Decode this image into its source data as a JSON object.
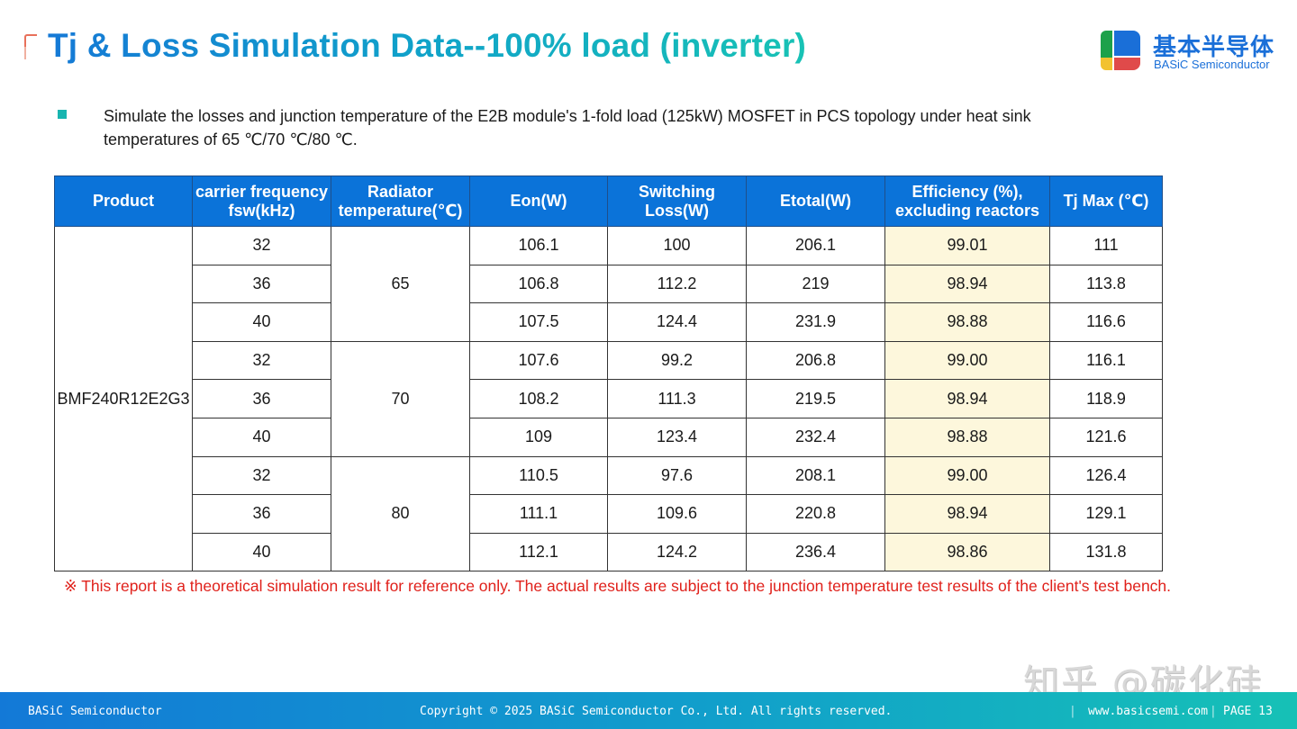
{
  "header": {
    "title": "Tj & Loss Simulation Data--100% load (inverter)",
    "logo": {
      "cn": "基本半导体",
      "en": "BASiC Semiconductor"
    }
  },
  "intro": {
    "text": "Simulate the losses and junction temperature of the E2B module's 1-fold load (125kW) MOSFET in PCS topology under heat sink temperatures of 65 ℃/70 ℃/80 ℃."
  },
  "table": {
    "headers": [
      "Product",
      "carrier frequency fsw(kHz)",
      "Radiator temperature(℃)",
      "Eon(W)",
      "Switching Loss(W)",
      "Etotal(W)",
      "Efficiency (%), excluding reactors",
      "Tj Max (℃)"
    ],
    "product": "BMF240R12E2G3",
    "groups": [
      {
        "radiator_temp": "65",
        "rows": [
          {
            "fsw": "32",
            "eon": "106.1",
            "sw_loss": "100",
            "etotal": "206.1",
            "efficiency": "99.01",
            "tj_max": "111"
          },
          {
            "fsw": "36",
            "eon": "106.8",
            "sw_loss": "112.2",
            "etotal": "219",
            "efficiency": "98.94",
            "tj_max": "113.8"
          },
          {
            "fsw": "40",
            "eon": "107.5",
            "sw_loss": "124.4",
            "etotal": "231.9",
            "efficiency": "98.88",
            "tj_max": "116.6"
          }
        ]
      },
      {
        "radiator_temp": "70",
        "rows": [
          {
            "fsw": "32",
            "eon": "107.6",
            "sw_loss": "99.2",
            "etotal": "206.8",
            "efficiency": "99.00",
            "tj_max": "116.1"
          },
          {
            "fsw": "36",
            "eon": "108.2",
            "sw_loss": "111.3",
            "etotal": "219.5",
            "efficiency": "98.94",
            "tj_max": "118.9"
          },
          {
            "fsw": "40",
            "eon": "109",
            "sw_loss": "123.4",
            "etotal": "232.4",
            "efficiency": "98.88",
            "tj_max": "121.6"
          }
        ]
      },
      {
        "radiator_temp": "80",
        "rows": [
          {
            "fsw": "32",
            "eon": "110.5",
            "sw_loss": "97.6",
            "etotal": "208.1",
            "efficiency": "99.00",
            "tj_max": "126.4"
          },
          {
            "fsw": "36",
            "eon": "111.1",
            "sw_loss": "109.6",
            "etotal": "220.8",
            "efficiency": "98.94",
            "tj_max": "129.1"
          },
          {
            "fsw": "40",
            "eon": "112.1",
            "sw_loss": "124.2",
            "etotal": "236.4",
            "efficiency": "98.86",
            "tj_max": "131.8"
          }
        ]
      }
    ]
  },
  "note": "※ This report is a theoretical simulation result for reference only. The actual results are subject to the junction temperature test results of the client's test bench.",
  "watermark": "知乎 @碳化硅",
  "footer": {
    "left": "BASiC Semiconductor",
    "copyright": "Copyright © 2025 BASiC Semiconductor Co., Ltd. All rights reserved.",
    "separator": "|",
    "website": "www.basicsemi.com",
    "page": "PAGE 13"
  },
  "colors": {
    "header_bg": "#0b73d9",
    "efficiency_bg": "#fdf7dc",
    "note": "#e0211b",
    "accent": "#18b5b0"
  }
}
